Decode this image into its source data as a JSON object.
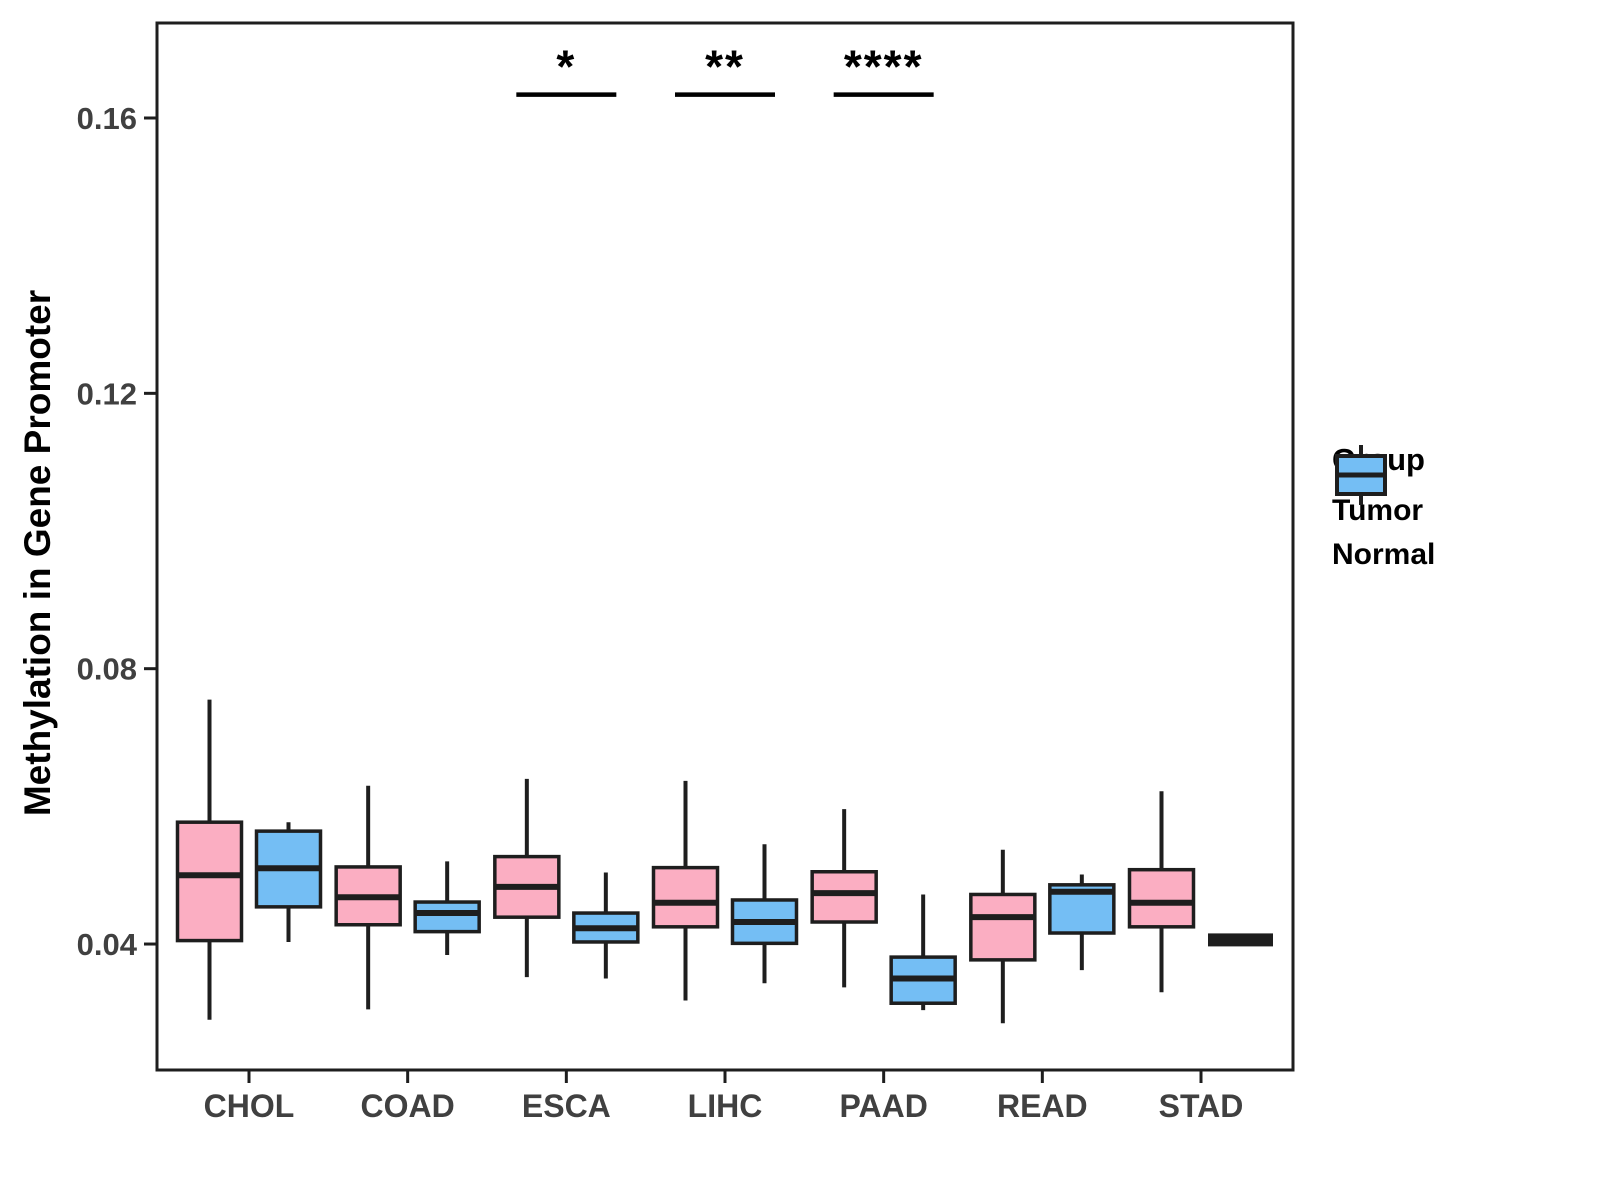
{
  "figure": {
    "background": "#FFFFFF"
  },
  "legend": {
    "title": "Group",
    "items": [
      {
        "label": "Tumor",
        "color": "#FBAEC2"
      },
      {
        "label": "Normal",
        "color": "#74BEF4"
      }
    ]
  },
  "chart_data": {
    "type": "grouped_boxplot",
    "title": "",
    "xlabel": "",
    "ylabel": "Methylation in Gene Promoter",
    "categories": [
      "CHOL",
      "COAD",
      "ESCA",
      "LIHC",
      "PAAD",
      "READ",
      "STAD"
    ],
    "groups": [
      "Tumor",
      "Normal"
    ],
    "group_colors": {
      "Tumor": "#FBAEC2",
      "Normal": "#74BEF4"
    },
    "box_stroke": "#1E1E1E",
    "tick_label_color": "#404040",
    "grid": false,
    "legend_position": "right",
    "ylim": [
      0.0217,
      0.1738
    ],
    "yticks": [
      0.04,
      0.08,
      0.12,
      0.16
    ],
    "ytick_labels": [
      "0.04",
      "0.08",
      "0.12",
      "0.16"
    ],
    "series": [
      {
        "name": "Tumor",
        "boxes": [
          {
            "category": "CHOL",
            "min": 0.029,
            "q1": 0.0405,
            "median": 0.05,
            "q3": 0.0577,
            "max": 0.0755
          },
          {
            "category": "COAD",
            "min": 0.0305,
            "q1": 0.0428,
            "median": 0.0468,
            "q3": 0.0512,
            "max": 0.063
          },
          {
            "category": "ESCA",
            "min": 0.0352,
            "q1": 0.0439,
            "median": 0.0483,
            "q3": 0.0527,
            "max": 0.064
          },
          {
            "category": "LIHC",
            "min": 0.0318,
            "q1": 0.0425,
            "median": 0.046,
            "q3": 0.0511,
            "max": 0.0637
          },
          {
            "category": "PAAD",
            "min": 0.0337,
            "q1": 0.0432,
            "median": 0.0474,
            "q3": 0.0505,
            "max": 0.0596
          },
          {
            "category": "READ",
            "min": 0.0285,
            "q1": 0.0377,
            "median": 0.0439,
            "q3": 0.0472,
            "max": 0.0537
          },
          {
            "category": "STAD",
            "min": 0.033,
            "q1": 0.0425,
            "median": 0.046,
            "q3": 0.0508,
            "max": 0.0622
          }
        ]
      },
      {
        "name": "Normal",
        "boxes": [
          {
            "category": "CHOL",
            "min": 0.0403,
            "q1": 0.0454,
            "median": 0.051,
            "q3": 0.0564,
            "max": 0.0577
          },
          {
            "category": "COAD",
            "min": 0.0384,
            "q1": 0.0418,
            "median": 0.0445,
            "q3": 0.0461,
            "max": 0.052
          },
          {
            "category": "ESCA",
            "min": 0.035,
            "q1": 0.0403,
            "median": 0.0423,
            "q3": 0.0445,
            "max": 0.0504
          },
          {
            "category": "LIHC",
            "min": 0.0343,
            "q1": 0.0401,
            "median": 0.0432,
            "q3": 0.0464,
            "max": 0.0545
          },
          {
            "category": "PAAD",
            "min": 0.0304,
            "q1": 0.0314,
            "median": 0.035,
            "q3": 0.0381,
            "max": 0.0472
          },
          {
            "category": "READ",
            "min": 0.0362,
            "q1": 0.0416,
            "median": 0.0476,
            "q3": 0.0486,
            "max": 0.0501
          },
          {
            "category": "STAD",
            "min": 0.0403,
            "q1": 0.0404,
            "median": 0.0406,
            "q3": 0.0408,
            "max": 0.0409
          }
        ]
      }
    ],
    "significance": [
      {
        "category": "ESCA",
        "label": "*",
        "bar_y": 0.1634
      },
      {
        "category": "LIHC",
        "label": "**",
        "bar_y": 0.1634
      },
      {
        "category": "PAAD",
        "label": "****",
        "bar_y": 0.1634
      }
    ]
  }
}
